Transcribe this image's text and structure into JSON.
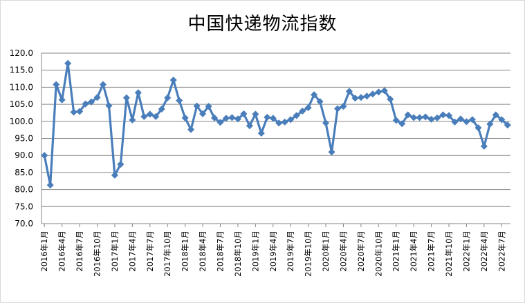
{
  "chart_data": {
    "type": "line",
    "title": "中国快递物流指数",
    "xlabel": "",
    "ylabel": "",
    "ylim": [
      70.0,
      120.0
    ],
    "yticks": [
      "70.0",
      "75.0",
      "80.0",
      "85.0",
      "90.0",
      "95.0",
      "100.0",
      "105.0",
      "110.0",
      "115.0",
      "120.0"
    ],
    "grid": true,
    "legend": "none",
    "line_color": "#4a7ebb",
    "x_tick_labels": [
      "2016年1月",
      "2016年4月",
      "2016年7月",
      "2016年10月",
      "2017年1月",
      "2017年4月",
      "2017年7月",
      "2017年10月",
      "2018年1月",
      "2018年4月",
      "2018年7月",
      "2018年10月",
      "2019年1月",
      "2019年4月",
      "2019年7月",
      "2019年10月",
      "2020年1月",
      "2020年4月",
      "2020年7月",
      "2020年10月",
      "2021年1月",
      "2021年4月",
      "2021年7月",
      "2021年10月",
      "2022年1月",
      "2022年4月",
      "2022年7月"
    ],
    "values": [
      90.0,
      81.3,
      110.8,
      106.3,
      117.0,
      102.7,
      102.9,
      105.1,
      105.7,
      107.0,
      110.8,
      104.6,
      84.2,
      87.4,
      106.9,
      100.4,
      108.4,
      101.4,
      102.1,
      101.4,
      103.6,
      106.9,
      112.1,
      106.1,
      101.0,
      97.6,
      104.5,
      102.2,
      104.4,
      101.0,
      99.7,
      100.9,
      101.1,
      100.7,
      102.2,
      98.7,
      102.1,
      96.5,
      101.2,
      100.9,
      99.5,
      99.8,
      100.5,
      101.7,
      103.0,
      104.0,
      107.8,
      105.8,
      99.5,
      91.0,
      103.7,
      104.4,
      108.8,
      106.8,
      107.0,
      107.4,
      108.0,
      108.6,
      109.0,
      106.5,
      100.3,
      99.3,
      101.9,
      101.1,
      101.1,
      101.3,
      100.6,
      101.0,
      101.9,
      101.7,
      99.8,
      100.7,
      99.9,
      100.5,
      98.1,
      92.7,
      99.2,
      101.9,
      100.5,
      98.9
    ]
  }
}
